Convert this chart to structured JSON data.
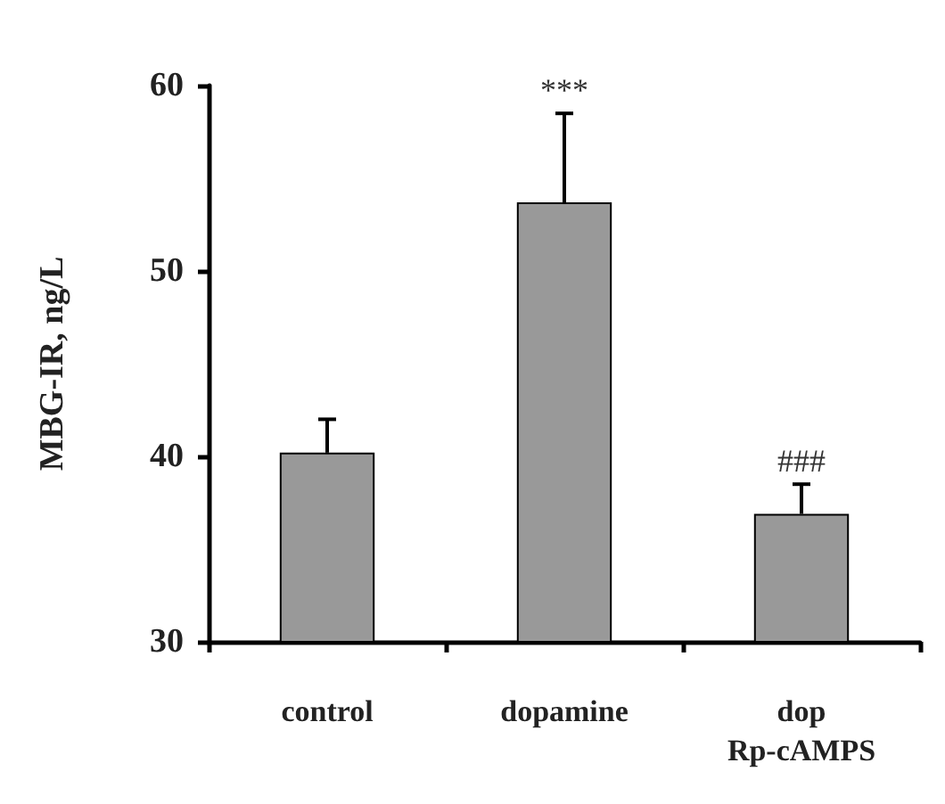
{
  "chart_data": {
    "type": "bar",
    "ylabel": "MBG-IR, ng/L",
    "categories": [
      "control",
      "dopamine",
      "dop\nRp-cAMPS"
    ],
    "series": [
      {
        "color": "#999999",
        "values": [
          40.2,
          53.7,
          36.9
        ],
        "errors": [
          [
            40.2,
            42.0
          ],
          [
            53.7,
            58.5
          ],
          [
            36.9,
            38.5
          ]
        ]
      }
    ],
    "ylim": [
      30,
      60
    ],
    "yticks": [
      30,
      40,
      50,
      60
    ],
    "grid": false,
    "annotations": [
      {
        "text": "***",
        "x": "dopamine",
        "y": 58.5
      },
      {
        "text": "###",
        "x": "dop\nRp-cAMPS",
        "y": 38.5
      }
    ]
  }
}
